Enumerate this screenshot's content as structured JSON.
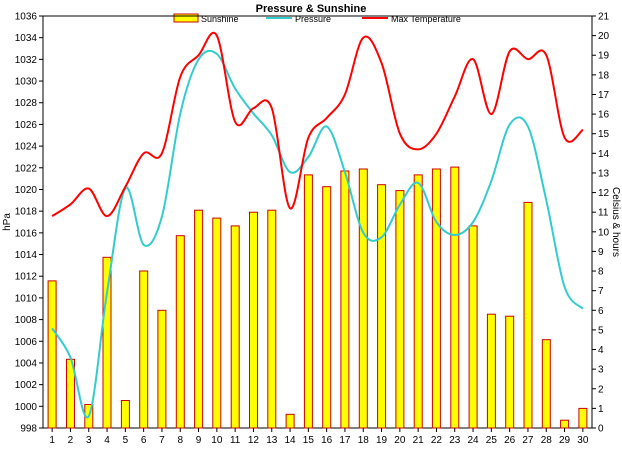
{
  "chart_data": {
    "type": "bar+line",
    "title": "Pressure & Sunshine",
    "categories": [
      "1",
      "2",
      "3",
      "4",
      "5",
      "6",
      "7",
      "8",
      "9",
      "10",
      "11",
      "12",
      "13",
      "14",
      "15",
      "16",
      "17",
      "18",
      "19",
      "20",
      "21",
      "22",
      "23",
      "24",
      "25",
      "26",
      "27",
      "28",
      "29",
      "30"
    ],
    "ylabel_left": "hPa",
    "ylabel_right": "Celsius & hours",
    "ylim_left": [
      998,
      1036
    ],
    "yticks_left": [
      "998",
      "1000",
      "1002",
      "1004",
      "1006",
      "1008",
      "1010",
      "1012",
      "1014",
      "1016",
      "1018",
      "1020",
      "1022",
      "1024",
      "1026",
      "1028",
      "1030",
      "1032",
      "1034",
      "1036"
    ],
    "ylim_right": [
      0,
      21
    ],
    "yticks_right": [
      "0",
      "1",
      "2",
      "3",
      "4",
      "5",
      "6",
      "7",
      "8",
      "9",
      "10",
      "11",
      "12",
      "13",
      "14",
      "15",
      "16",
      "17",
      "18",
      "19",
      "20",
      "21"
    ],
    "grid": false,
    "legend_position": "top",
    "series": [
      {
        "name": "Sunshine",
        "kind": "bar",
        "axis": "right",
        "color": "#ffff00",
        "edge_color": "#cc0000",
        "values": [
          7.5,
          3.5,
          1.2,
          8.7,
          1.4,
          8.0,
          6.0,
          9.8,
          11.1,
          10.7,
          10.3,
          11.0,
          11.1,
          0.7,
          12.9,
          12.3,
          13.1,
          13.2,
          12.4,
          12.1,
          12.9,
          13.2,
          13.3,
          10.3,
          5.8,
          5.7,
          11.5,
          4.5,
          0.4,
          1.0
        ]
      },
      {
        "name": "Pressure",
        "kind": "line",
        "axis": "left",
        "color": "#33cccc",
        "values": [
          1007.2,
          1004.5,
          999.1,
          1010.5,
          1020.1,
          1014.9,
          1017.5,
          1027.0,
          1032.0,
          1032.5,
          1029.3,
          1027.0,
          1025.0,
          1021.6,
          1023.0,
          1025.8,
          1021.6,
          1016.0,
          1015.6,
          1018.6,
          1020.6,
          1017.0,
          1015.8,
          1017.0,
          1020.8,
          1026.0,
          1025.8,
          1019.0,
          1011.0,
          1009.0
        ]
      },
      {
        "name": "Max Temperature",
        "kind": "line",
        "axis": "right",
        "color": "#ff0000",
        "values": [
          10.8,
          11.4,
          12.2,
          10.8,
          12.3,
          14.0,
          14.0,
          17.9,
          19.0,
          20.0,
          15.6,
          16.3,
          16.3,
          11.2,
          14.8,
          15.8,
          17.0,
          19.9,
          18.6,
          15.0,
          14.2,
          15.0,
          16.9,
          18.8,
          16.0,
          19.2,
          18.8,
          19.0,
          14.8,
          15.2
        ]
      }
    ]
  }
}
